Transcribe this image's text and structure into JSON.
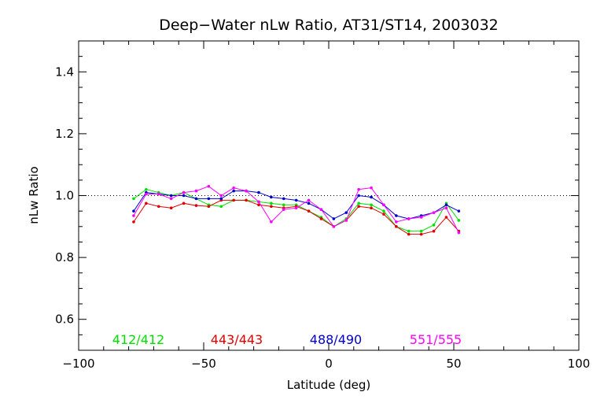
{
  "chart_data": {
    "type": "line",
    "title": "Deep−Water nLw Ratio, AT31/ST14, 2003032",
    "xlabel": "Latitude (deg)",
    "ylabel": "nLw Ratio",
    "xlim": [
      -100,
      100
    ],
    "ylim": [
      0.5,
      1.5
    ],
    "xticks": [
      -100,
      -50,
      0,
      50,
      100
    ],
    "xtick_labels": [
      "−100",
      "−50",
      "0",
      "50",
      "100"
    ],
    "yticks": [
      0.6,
      0.8,
      1.0,
      1.2,
      1.4
    ],
    "ytick_labels": [
      "0.6",
      "0.8",
      "1.0",
      "1.2",
      "1.4"
    ],
    "reference_line": {
      "y": 1.0,
      "style": "dotted"
    },
    "legend_placement": "bottom inside plot",
    "x": [
      -78,
      -73,
      -68,
      -63,
      -58,
      -53,
      -48,
      -43,
      -38,
      -33,
      -28,
      -23,
      -18,
      -13,
      -8,
      -3,
      2,
      7,
      12,
      17,
      22,
      27,
      32,
      37,
      42,
      47,
      52
    ],
    "series": [
      {
        "name": "412/412",
        "color": "#00e000",
        "values": [
          0.99,
          1.02,
          1.01,
          1.0,
          1.01,
          0.99,
          0.97,
          0.965,
          0.985,
          0.985,
          0.98,
          0.975,
          0.97,
          0.97,
          0.95,
          0.93,
          0.9,
          0.925,
          0.975,
          0.97,
          0.95,
          0.9,
          0.885,
          0.885,
          0.905,
          0.975,
          0.92
        ]
      },
      {
        "name": "443/443",
        "color": "#e00000",
        "values": [
          0.915,
          0.975,
          0.965,
          0.96,
          0.975,
          0.968,
          0.965,
          0.985,
          0.985,
          0.985,
          0.97,
          0.965,
          0.96,
          0.965,
          0.95,
          0.925,
          0.9,
          0.92,
          0.965,
          0.96,
          0.94,
          0.9,
          0.875,
          0.875,
          0.885,
          0.93,
          0.885
        ]
      },
      {
        "name": "488/490",
        "color": "#0000d0",
        "values": [
          0.95,
          1.01,
          1.005,
          1.0,
          1.0,
          0.99,
          0.99,
          0.99,
          1.015,
          1.015,
          1.01,
          0.995,
          0.99,
          0.985,
          0.975,
          0.955,
          0.925,
          0.945,
          1.0,
          0.995,
          0.97,
          0.935,
          0.925,
          0.935,
          0.945,
          0.97,
          0.95
        ]
      },
      {
        "name": "551/555",
        "color": "#ff00ff",
        "values": [
          0.935,
          1.005,
          1.005,
          0.99,
          1.01,
          1.015,
          1.03,
          1.0,
          1.025,
          1.015,
          0.98,
          0.915,
          0.955,
          0.96,
          0.985,
          0.955,
          0.9,
          0.92,
          1.02,
          1.025,
          0.97,
          0.915,
          0.925,
          0.93,
          0.945,
          0.96,
          0.88
        ]
      }
    ]
  }
}
